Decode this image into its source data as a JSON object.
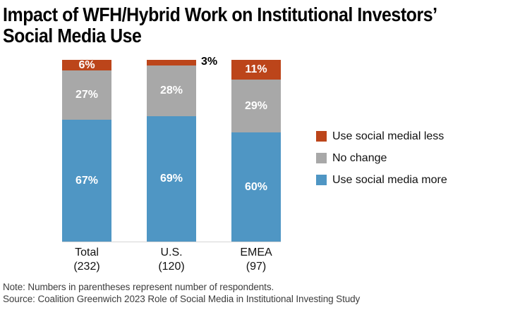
{
  "title": {
    "line1": "Impact of WFH/Hybrid Work on Institutional Investors’",
    "line2": "Social Media Use"
  },
  "chart_data": {
    "type": "bar",
    "stacked": true,
    "orientation": "vertical",
    "value_unit": "%",
    "ylim": [
      0,
      100
    ],
    "gridlines": false,
    "legend_position": "right",
    "categories": [
      {
        "label": "Total",
        "count_label": "(232)"
      },
      {
        "label": "U.S.",
        "count_label": "(120)"
      },
      {
        "label": "EMEA",
        "count_label": "(97)"
      }
    ],
    "series": [
      {
        "name": "Use social media more",
        "color": "#4f96c4",
        "values": [
          67,
          69,
          60
        ]
      },
      {
        "name": "No change",
        "color": "#a8a8a8",
        "values": [
          27,
          28,
          29
        ]
      },
      {
        "name": "Use social medial less",
        "color": "#bc451a",
        "values": [
          6,
          3,
          11
        ]
      }
    ],
    "stack_order_bottom_to_top": [
      "Use social media more",
      "No change",
      "Use social medial less"
    ],
    "legend_order_top_to_bottom": [
      "Use social medial less",
      "No change",
      "Use social media more"
    ]
  },
  "notes": {
    "note": "Note: Numbers in parentheses represent number of respondents.",
    "source": "Source: Coalition Greenwich 2023 Role of Social Media in Institutional Investing Study"
  },
  "colors": {
    "less": "#bc451a",
    "no_change": "#a8a8a8",
    "more": "#4f96c4",
    "axis_line": "#d5d5d5",
    "inside_label": "#ffffff",
    "outside_label": "#000000",
    "background": "#ffffff"
  }
}
